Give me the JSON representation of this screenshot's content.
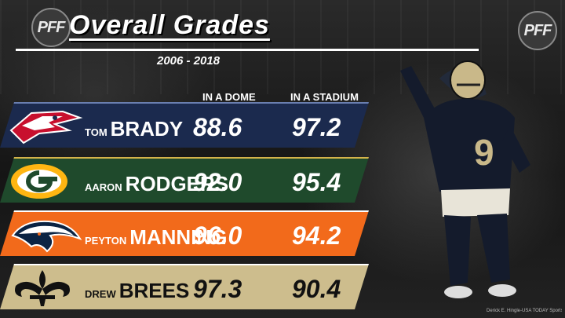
{
  "header": {
    "title": "Overall Grades",
    "subtitle": "2006 - 2018",
    "brand": "PFF"
  },
  "columns": {
    "dome": "IN A DOME",
    "stadium": "IN A STADIUM"
  },
  "rows": [
    {
      "first": "TOM",
      "last": "BRADY",
      "dome": "88.6",
      "stadium": "97.2",
      "team_icon": "patriots-logo-icon",
      "color": "#1b2a4e"
    },
    {
      "first": "AARON",
      "last": "RODGERS",
      "dome": "92.0",
      "stadium": "95.4",
      "team_icon": "packers-logo-icon",
      "color": "#1f4a2c"
    },
    {
      "first": "PEYTON",
      "last": "MANNING",
      "dome": "96.0",
      "stadium": "94.2",
      "team_icon": "broncos-logo-icon",
      "color": "#f26a1b"
    },
    {
      "first": "DREW",
      "last": "BREES",
      "dome": "97.3",
      "stadium": "90.4",
      "team_icon": "saints-logo-icon",
      "color": "#cdbd8d"
    }
  ],
  "photo": {
    "jersey_number": "9",
    "credit": "Derick E. Hingle-USA TODAY Sports"
  }
}
